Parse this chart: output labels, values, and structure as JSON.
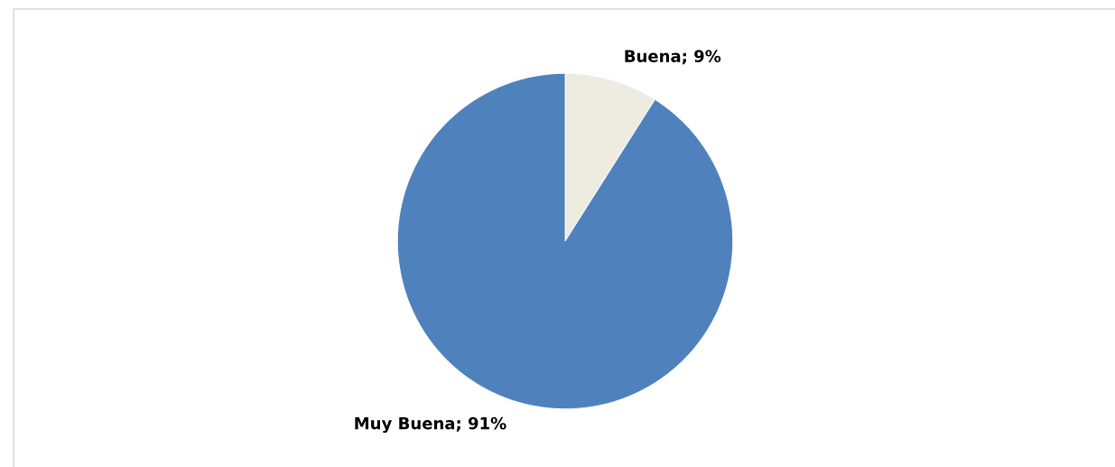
{
  "chart_data": {
    "type": "pie",
    "categories": [
      "Buena",
      "Muy Buena"
    ],
    "values": [
      9,
      91
    ],
    "colors": [
      "#eeece1",
      "#4f81bd"
    ],
    "value_labels": [
      "9%",
      "91%"
    ],
    "legend": false
  }
}
